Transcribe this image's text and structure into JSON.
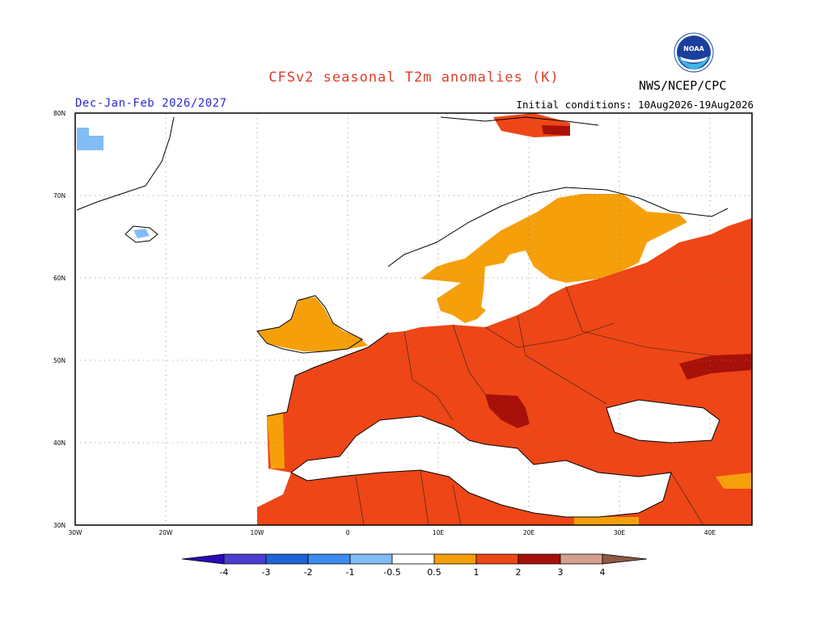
{
  "header": {
    "title": "CFSv2 seasonal T2m anomalies (K)",
    "season": "Dec-Jan-Feb 2026/2027",
    "initial_conditions": "Initial conditions: 10Aug2026-19Aug2026",
    "agency": "NWS/NCEP/CPC",
    "logo_text": "NOAA"
  },
  "map": {
    "lon_ticks": [
      "30W",
      "20W",
      "10W",
      "0",
      "10E",
      "20E",
      "30E",
      "40E"
    ],
    "lat_ticks": [
      "80N",
      "70N",
      "60N",
      "50N",
      "40N",
      "30N"
    ],
    "lon_range": [
      -30,
      45
    ],
    "lat_range": [
      30,
      80
    ],
    "gridlines": "dotted"
  },
  "colorbar": {
    "labels": [
      "-4",
      "-3",
      "-2",
      "-1",
      "-0.5",
      "0.5",
      "1",
      "2",
      "3",
      "4"
    ],
    "colors": {
      "lt_-4": "#2b0ab8",
      "-4_-3": "#4b3ed1",
      "-3_-2": "#1f64d6",
      "-2_-1": "#3c8cf0",
      "-1_-0.5": "#82bcf5",
      "-0.5_0.5": "#ffffff",
      "0.5_1": "#f5a00a",
      "1_2": "#ee4616",
      "2_3": "#a8110a",
      "3_4": "#d4a090",
      "gt_4": "#8c5a46"
    }
  },
  "anomaly_levels": {
    "warm_orange": "0.5 to 1",
    "warm_red": "1 to 2",
    "warm_dark": "2 to 3",
    "cool_light_blue": "-1 to -0.5"
  }
}
